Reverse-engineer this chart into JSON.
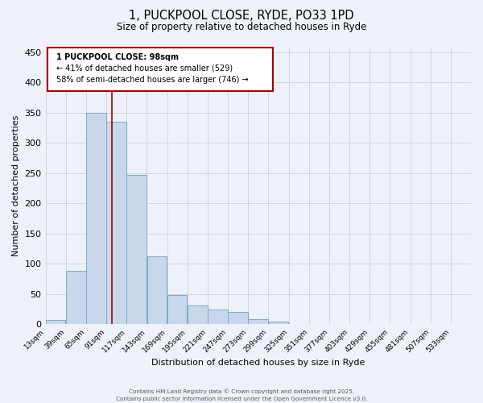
{
  "title_line1": "1, PUCKPOOL CLOSE, RYDE, PO33 1PD",
  "title_line2": "Size of property relative to detached houses in Ryde",
  "xlabel": "Distribution of detached houses by size in Ryde",
  "ylabel": "Number of detached properties",
  "bar_color": "#c8d8ea",
  "bar_edge_color": "#7aaac8",
  "bg_color": "#eef2f8",
  "grid_color": "#c8d0dc",
  "annotation_box_edge_color": "#aa0000",
  "annotation_line_color": "#aa0000",
  "property_line_x": 98,
  "annotation_text_line1": "1 PUCKPOOL CLOSE: 98sqm",
  "annotation_text_line2": "← 41% of detached houses are smaller (529)",
  "annotation_text_line3": "58% of semi-detached houses are larger (746) →",
  "bin_starts": [
    13,
    39,
    65,
    91,
    117,
    143,
    169,
    195,
    221,
    247,
    273,
    299,
    325,
    351,
    377,
    403,
    429,
    455,
    481,
    507,
    533
  ],
  "bin_width": 26,
  "bar_heights": [
    7,
    89,
    350,
    335,
    247,
    112,
    49,
    31,
    25,
    20,
    9,
    4,
    1,
    1,
    1,
    0,
    0,
    0,
    0,
    0,
    1
  ],
  "ylim": [
    0,
    460
  ],
  "yticks": [
    0,
    50,
    100,
    150,
    200,
    250,
    300,
    350,
    400,
    450
  ],
  "footnote_line1": "Contains HM Land Registry data © Crown copyright and database right 2025.",
  "footnote_line2": "Contains public sector information licensed under the Open Government Licence v3.0."
}
